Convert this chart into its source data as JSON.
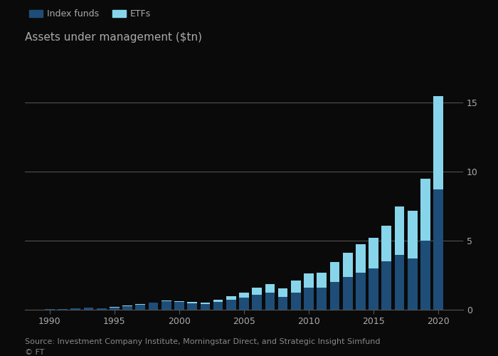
{
  "title": "Assets under management ($tn)",
  "source": "Source: Investment Company Institute, Morningstar Direct, and Strategic Insight Simfund",
  "ft_label": "© FT",
  "legend_labels": [
    "Index funds",
    "ETFs"
  ],
  "index_fund_color": "#1e4d78",
  "etf_color": "#87d5ea",
  "background_color": "#0a0a0a",
  "text_color": "#aaaaaa",
  "grid_color": "#555555",
  "years": [
    1990,
    1991,
    1992,
    1993,
    1994,
    1995,
    1996,
    1997,
    1998,
    1999,
    2000,
    2001,
    2002,
    2003,
    2004,
    2005,
    2006,
    2007,
    2008,
    2009,
    2010,
    2011,
    2012,
    2013,
    2014,
    2015,
    2016,
    2017,
    2018,
    2019,
    2020
  ],
  "index_funds": [
    0.05,
    0.06,
    0.09,
    0.13,
    0.12,
    0.18,
    0.28,
    0.38,
    0.5,
    0.6,
    0.55,
    0.48,
    0.43,
    0.58,
    0.72,
    0.9,
    1.1,
    1.25,
    0.95,
    1.25,
    1.6,
    1.6,
    2.0,
    2.4,
    2.7,
    3.0,
    3.5,
    4.0,
    3.7,
    5.0,
    8.7
  ],
  "etfs": [
    0.0,
    0.0,
    0.0,
    0.0,
    0.0,
    0.01,
    0.01,
    0.02,
    0.03,
    0.05,
    0.07,
    0.09,
    0.1,
    0.15,
    0.25,
    0.35,
    0.48,
    0.62,
    0.58,
    0.85,
    1.05,
    1.1,
    1.45,
    1.75,
    2.05,
    2.2,
    2.6,
    3.5,
    3.45,
    4.5,
    6.8
  ],
  "ylim": [
    0,
    16
  ],
  "yticks": [
    0,
    5,
    10,
    15
  ],
  "xticks": [
    1990,
    1995,
    2000,
    2005,
    2010,
    2015,
    2020
  ],
  "title_fontsize": 11,
  "legend_fontsize": 9,
  "tick_fontsize": 9,
  "source_fontsize": 8
}
